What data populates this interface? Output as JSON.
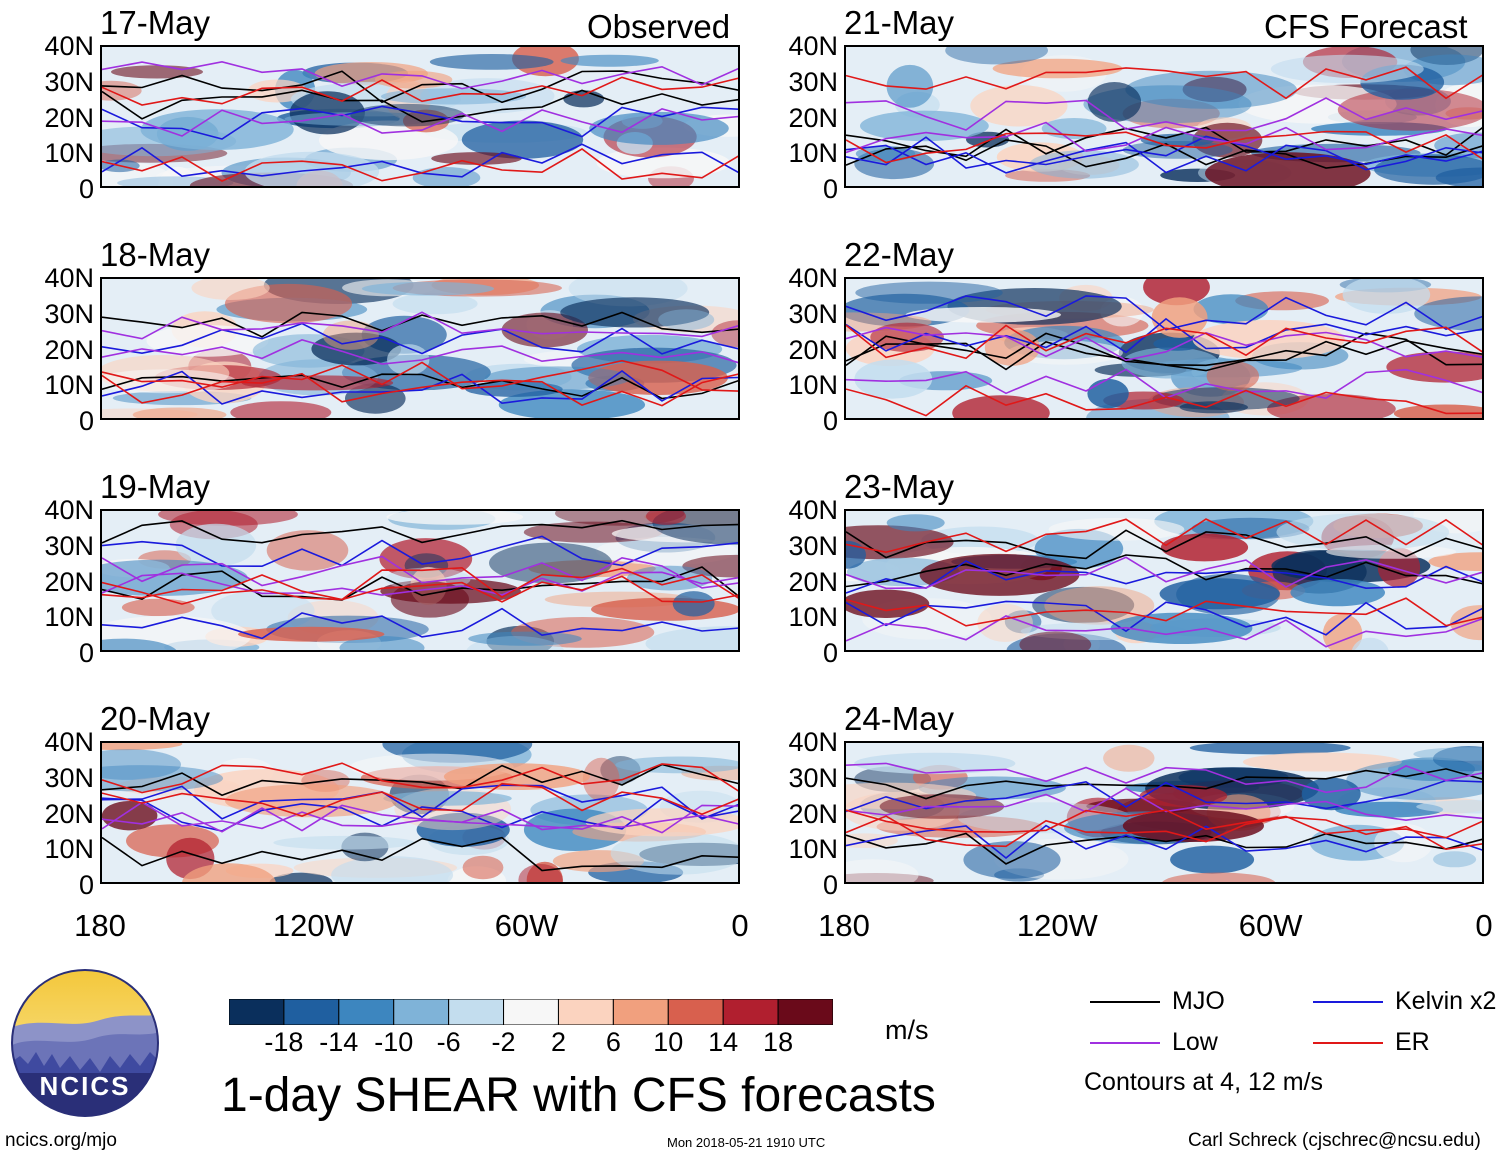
{
  "corner_labels": {
    "left": "Observed",
    "right": "CFS Forecast"
  },
  "chart_data": {
    "type": "heatmap",
    "title": "1-day SHEAR with CFS forecasts",
    "units": "m/s",
    "latitude_ticks": [
      "40N",
      "30N",
      "20N",
      "10N",
      "0"
    ],
    "longitude_ticks": [
      "180",
      "120W",
      "60W",
      "0"
    ],
    "ylim": [
      0,
      40
    ],
    "xlim": [
      -180,
      0
    ],
    "panels": [
      {
        "date": "17-May",
        "column": "Observed"
      },
      {
        "date": "18-May",
        "column": "Observed"
      },
      {
        "date": "19-May",
        "column": "Observed"
      },
      {
        "date": "20-May",
        "column": "Observed"
      },
      {
        "date": "21-May",
        "column": "CFS Forecast"
      },
      {
        "date": "22-May",
        "column": "CFS Forecast"
      },
      {
        "date": "23-May",
        "column": "CFS Forecast"
      },
      {
        "date": "24-May",
        "column": "CFS Forecast"
      }
    ],
    "colorbar": {
      "labels": [
        "-18",
        "-14",
        "-10",
        "-6",
        "-2",
        "2",
        "6",
        "10",
        "14",
        "18"
      ],
      "colors": [
        "#0a2f5c",
        "#1f5fa0",
        "#3d86bf",
        "#7fb3d8",
        "#c3ddee",
        "#f7f7f7",
        "#fbd3bf",
        "#f1a07e",
        "#d8604e",
        "#b11f2f",
        "#6a0a1a"
      ]
    },
    "legend": [
      {
        "label": "MJO",
        "color": "#000000"
      },
      {
        "label": "Kelvin x2",
        "color": "#1a1adc"
      },
      {
        "label": "Low",
        "color": "#a030e0"
      },
      {
        "label": "ER",
        "color": "#e01818"
      }
    ],
    "contour_note": "Contours at 4, 12 m/s"
  },
  "footer": {
    "logo_text": "NCICS",
    "url": "ncics.org/mjo",
    "timestamp": "Mon 2018-05-21 1910 UTC",
    "author": "Carl Schreck (cjschrec@ncsu.edu)"
  }
}
